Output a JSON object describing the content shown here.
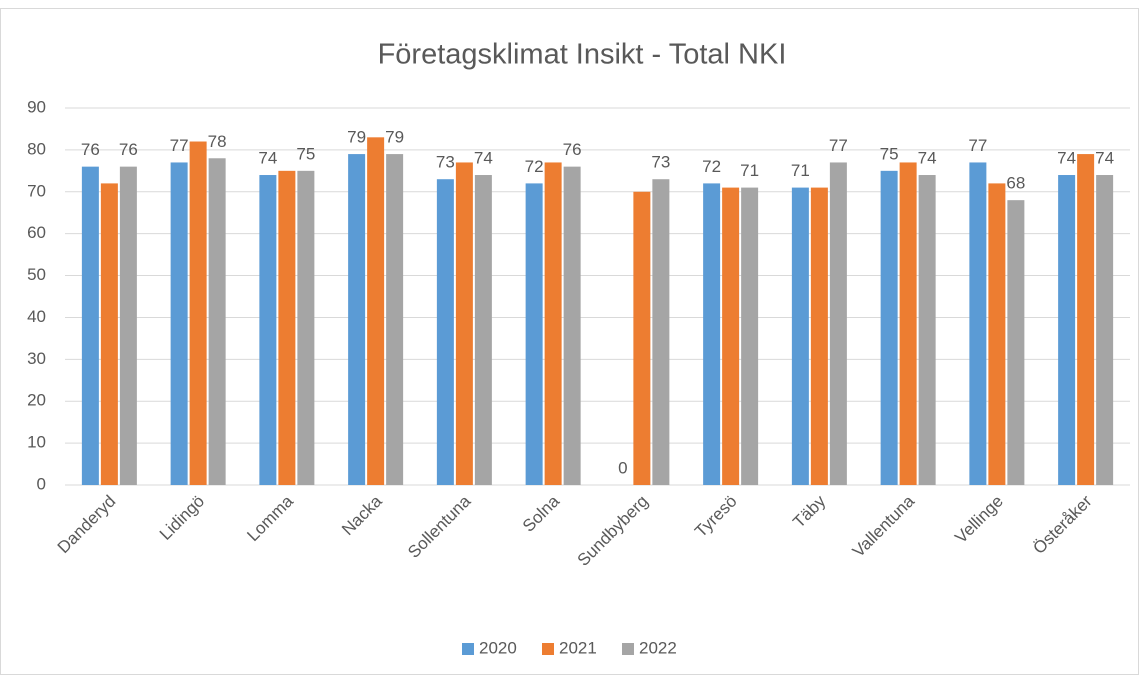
{
  "chart_data": {
    "type": "bar",
    "title": "Företagsklimat Insikt - Total NKI",
    "categories": [
      "Danderyd",
      "Lidingö",
      "Lomma",
      "Nacka",
      "Sollentuna",
      "Solna",
      "Sundbyberg",
      "Tyresö",
      "Täby",
      "Vallentuna",
      "Vellinge",
      "Österåker"
    ],
    "series": [
      {
        "name": "2020",
        "color": "#5b9bd5",
        "show_labels": true,
        "values": [
          76,
          77,
          74,
          79,
          73,
          72,
          0,
          72,
          71,
          75,
          77,
          74
        ]
      },
      {
        "name": "2021",
        "color": "#ed7d31",
        "show_labels": false,
        "values": [
          72,
          82,
          75,
          83,
          77,
          77,
          70,
          71,
          71,
          77,
          72,
          79
        ]
      },
      {
        "name": "2022",
        "color": "#a5a5a5",
        "show_labels": true,
        "values": [
          76,
          78,
          75,
          79,
          74,
          76,
          73,
          71,
          77,
          74,
          68,
          74
        ]
      }
    ],
    "ylim": [
      0,
      90
    ],
    "yticks": [
      0,
      10,
      20,
      30,
      40,
      50,
      60,
      70,
      80,
      90
    ],
    "grid": true,
    "legend": "bottom"
  }
}
